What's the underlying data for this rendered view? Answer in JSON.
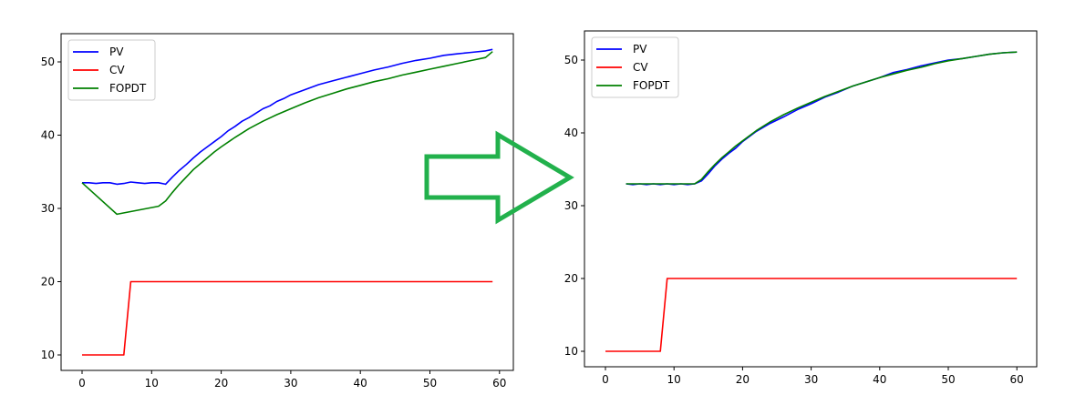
{
  "chart_data": [
    {
      "type": "line",
      "title": "",
      "xlabel": "",
      "ylabel": "",
      "xlim": [
        -3,
        62
      ],
      "ylim": [
        8,
        54
      ],
      "xticks": [
        "0",
        "10",
        "20",
        "30",
        "40",
        "50",
        "60"
      ],
      "yticks": [
        "10",
        "20",
        "30",
        "40",
        "50"
      ],
      "grid": false,
      "legend_position": "upper left",
      "legend": [
        "PV",
        "CV",
        "FOPDT"
      ],
      "series": [
        {
          "name": "PV",
          "color": "#0000ff",
          "x": [
            0,
            1,
            2,
            3,
            4,
            5,
            6,
            7,
            8,
            9,
            10,
            11,
            12,
            13,
            14,
            15,
            16,
            17,
            18,
            19,
            20,
            21,
            22,
            23,
            24,
            25,
            26,
            27,
            28,
            29,
            30,
            32,
            34,
            36,
            38,
            40,
            42,
            44,
            46,
            48,
            50,
            52,
            54,
            56,
            58,
            59
          ],
          "y": [
            33.5,
            33.5,
            33.4,
            33.5,
            33.5,
            33.3,
            33.4,
            33.6,
            33.5,
            33.4,
            33.5,
            33.5,
            33.3,
            34.3,
            35.2,
            36.0,
            36.9,
            37.7,
            38.4,
            39.1,
            39.8,
            40.6,
            41.2,
            41.9,
            42.4,
            43.0,
            43.6,
            44.0,
            44.6,
            45.0,
            45.5,
            46.2,
            46.9,
            47.4,
            47.9,
            48.4,
            48.9,
            49.3,
            49.8,
            50.2,
            50.5,
            50.9,
            51.1,
            51.3,
            51.5,
            51.7
          ]
        },
        {
          "name": "CV",
          "color": "#ff0000",
          "x": [
            0,
            6,
            7,
            59
          ],
          "y": [
            10,
            10,
            20,
            20
          ]
        },
        {
          "name": "FOPDT",
          "color": "#008000",
          "x": [
            0,
            5,
            11,
            12,
            13,
            14,
            15,
            16,
            17,
            18,
            19,
            20,
            22,
            24,
            26,
            28,
            30,
            32,
            34,
            36,
            38,
            40,
            42,
            44,
            46,
            48,
            50,
            52,
            54,
            56,
            58,
            59
          ],
          "y": [
            33.5,
            29.2,
            30.3,
            31.0,
            32.2,
            33.3,
            34.3,
            35.3,
            36.1,
            36.9,
            37.7,
            38.4,
            39.7,
            40.9,
            41.9,
            42.8,
            43.6,
            44.4,
            45.1,
            45.7,
            46.3,
            46.8,
            47.3,
            47.7,
            48.2,
            48.6,
            49.0,
            49.4,
            49.8,
            50.2,
            50.6,
            51.4
          ]
        }
      ]
    },
    {
      "type": "line",
      "title": "",
      "xlabel": "",
      "ylabel": "",
      "xlim": [
        -3,
        63
      ],
      "ylim": [
        8,
        54
      ],
      "xticks": [
        "0",
        "10",
        "20",
        "30",
        "40",
        "50",
        "60"
      ],
      "yticks": [
        "10",
        "20",
        "30",
        "40",
        "50"
      ],
      "grid": false,
      "legend_position": "upper left",
      "legend": [
        "PV",
        "CV",
        "FOPDT"
      ],
      "series": [
        {
          "name": "PV",
          "color": "#0000ff",
          "x": [
            3,
            4,
            5,
            6,
            7,
            8,
            9,
            10,
            11,
            12,
            13,
            14,
            15,
            16,
            17,
            18,
            19,
            20,
            22,
            24,
            26,
            28,
            30,
            32,
            34,
            36,
            38,
            40,
            42,
            44,
            46,
            48,
            50,
            52,
            54,
            56,
            58,
            60
          ],
          "y": [
            33.0,
            32.9,
            33.0,
            32.9,
            33.0,
            32.9,
            33.0,
            32.9,
            33.0,
            32.9,
            33.0,
            33.4,
            34.4,
            35.5,
            36.4,
            37.2,
            37.9,
            38.8,
            40.2,
            41.3,
            42.2,
            43.2,
            44.0,
            44.9,
            45.6,
            46.4,
            47.0,
            47.6,
            48.3,
            48.7,
            49.2,
            49.6,
            50.0,
            50.2,
            50.5,
            50.8,
            51.0,
            51.1
          ]
        },
        {
          "name": "CV",
          "color": "#ff0000",
          "x": [
            0,
            8,
            9,
            60
          ],
          "y": [
            10,
            10,
            20,
            20
          ]
        },
        {
          "name": "FOPDT",
          "color": "#008000",
          "x": [
            3,
            13,
            14,
            15,
            16,
            17,
            18,
            19,
            20,
            22,
            24,
            26,
            28,
            30,
            32,
            34,
            36,
            38,
            40,
            42,
            44,
            46,
            48,
            50,
            52,
            54,
            56,
            58,
            60
          ],
          "y": [
            33.0,
            33.0,
            33.6,
            34.7,
            35.7,
            36.6,
            37.4,
            38.2,
            38.9,
            40.3,
            41.5,
            42.5,
            43.4,
            44.2,
            45.0,
            45.7,
            46.4,
            47.0,
            47.6,
            48.1,
            48.6,
            49.0,
            49.5,
            49.9,
            50.2,
            50.5,
            50.8,
            51.0,
            51.1
          ]
        }
      ]
    }
  ],
  "annotation": {
    "type": "arrow",
    "direction": "right",
    "color": "#22b14c"
  }
}
